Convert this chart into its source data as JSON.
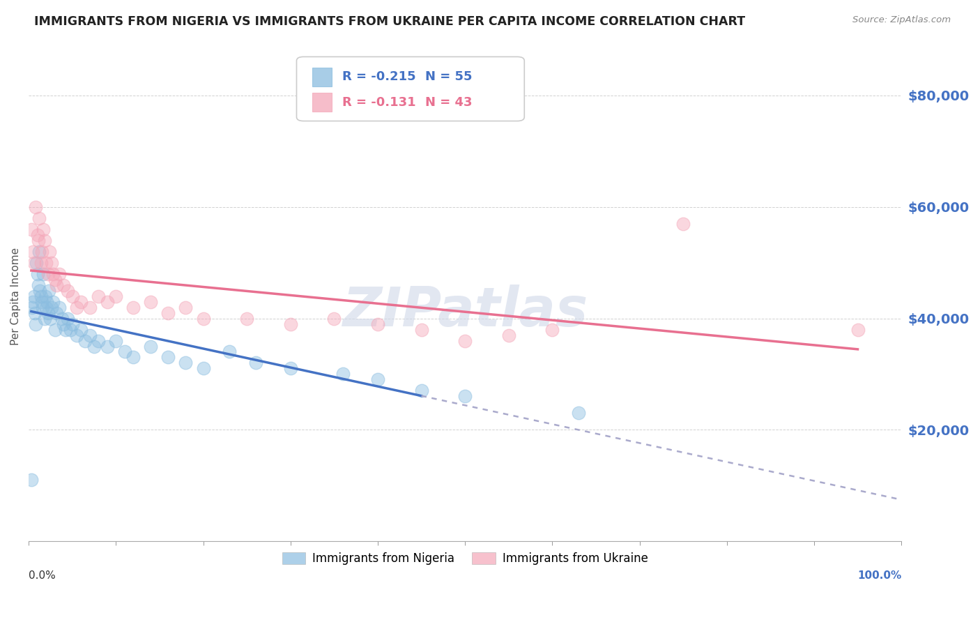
{
  "title": "IMMIGRANTS FROM NIGERIA VS IMMIGRANTS FROM UKRAINE PER CAPITA INCOME CORRELATION CHART",
  "source": "Source: ZipAtlas.com",
  "ylabel": "Per Capita Income",
  "yticks": [
    0,
    20000,
    40000,
    60000,
    80000
  ],
  "ytick_labels": [
    "",
    "$20,000",
    "$40,000",
    "$60,000",
    "$80,000"
  ],
  "legend_entries": [
    {
      "label_r": "R = -0.215",
      "label_n": "N = 55",
      "color": "#8bbde0"
    },
    {
      "label_r": "R = -0.131",
      "label_n": "N = 43",
      "color": "#f4a7b9"
    }
  ],
  "legend_labels_bottom": [
    "Immigrants from Nigeria",
    "Immigrants from Ukraine"
  ],
  "watermark": "ZIPatlas",
  "nigeria_x": [
    0.4,
    0.5,
    0.6,
    0.7,
    0.8,
    0.9,
    1.0,
    1.1,
    1.2,
    1.3,
    1.4,
    1.5,
    1.6,
    1.7,
    1.8,
    1.9,
    2.0,
    2.1,
    2.2,
    2.3,
    2.5,
    2.6,
    2.8,
    3.0,
    3.2,
    3.5,
    3.8,
    4.0,
    4.2,
    4.5,
    4.8,
    5.0,
    5.5,
    6.0,
    6.5,
    7.0,
    7.5,
    8.0,
    9.0,
    10.0,
    11.0,
    12.0,
    14.0,
    16.0,
    18.0,
    20.0,
    23.0,
    26.0,
    30.0,
    36.0,
    40.0,
    45.0,
    50.0,
    0.3,
    63.0
  ],
  "nigeria_y": [
    42000,
    43000,
    44000,
    41000,
    39000,
    50000,
    48000,
    46000,
    52000,
    45000,
    44000,
    43000,
    42000,
    48000,
    40000,
    44000,
    42000,
    43000,
    41000,
    45000,
    40000,
    42000,
    43000,
    38000,
    41000,
    42000,
    40000,
    39000,
    38000,
    40000,
    38000,
    39000,
    37000,
    38000,
    36000,
    37000,
    35000,
    36000,
    35000,
    36000,
    34000,
    33000,
    35000,
    33000,
    32000,
    31000,
    34000,
    32000,
    31000,
    30000,
    29000,
    27000,
    26000,
    11000,
    23000
  ],
  "ukraine_x": [
    0.3,
    0.5,
    0.6,
    0.8,
    1.0,
    1.1,
    1.2,
    1.4,
    1.5,
    1.7,
    1.8,
    2.0,
    2.2,
    2.4,
    2.6,
    2.8,
    3.0,
    3.2,
    3.5,
    4.0,
    4.5,
    5.0,
    5.5,
    6.0,
    7.0,
    8.0,
    9.0,
    10.0,
    12.0,
    14.0,
    16.0,
    18.0,
    20.0,
    25.0,
    30.0,
    35.0,
    40.0,
    45.0,
    50.0,
    55.0,
    60.0,
    75.0,
    95.0
  ],
  "ukraine_y": [
    56000,
    52000,
    50000,
    60000,
    55000,
    54000,
    58000,
    50000,
    52000,
    56000,
    54000,
    50000,
    48000,
    52000,
    50000,
    48000,
    47000,
    46000,
    48000,
    46000,
    45000,
    44000,
    42000,
    43000,
    42000,
    44000,
    43000,
    44000,
    42000,
    43000,
    41000,
    42000,
    40000,
    40000,
    39000,
    40000,
    39000,
    38000,
    36000,
    37000,
    38000,
    57000,
    38000
  ],
  "blue_line_color": "#4472c4",
  "pink_line_color": "#e87090",
  "dashed_line_color": "#aaaacc",
  "nigeria_dot_color": "#8bbde0",
  "ukraine_dot_color": "#f4a7b9",
  "background_color": "#ffffff",
  "title_color": "#222222",
  "ytick_color": "#4472c4",
  "grid_color": "#cccccc",
  "xlim": [
    0,
    100
  ],
  "ylim": [
    0,
    88000
  ],
  "blue_solid_end_x": 45.0,
  "dashed_start_x": 45.0,
  "dashed_end_x": 100.0
}
